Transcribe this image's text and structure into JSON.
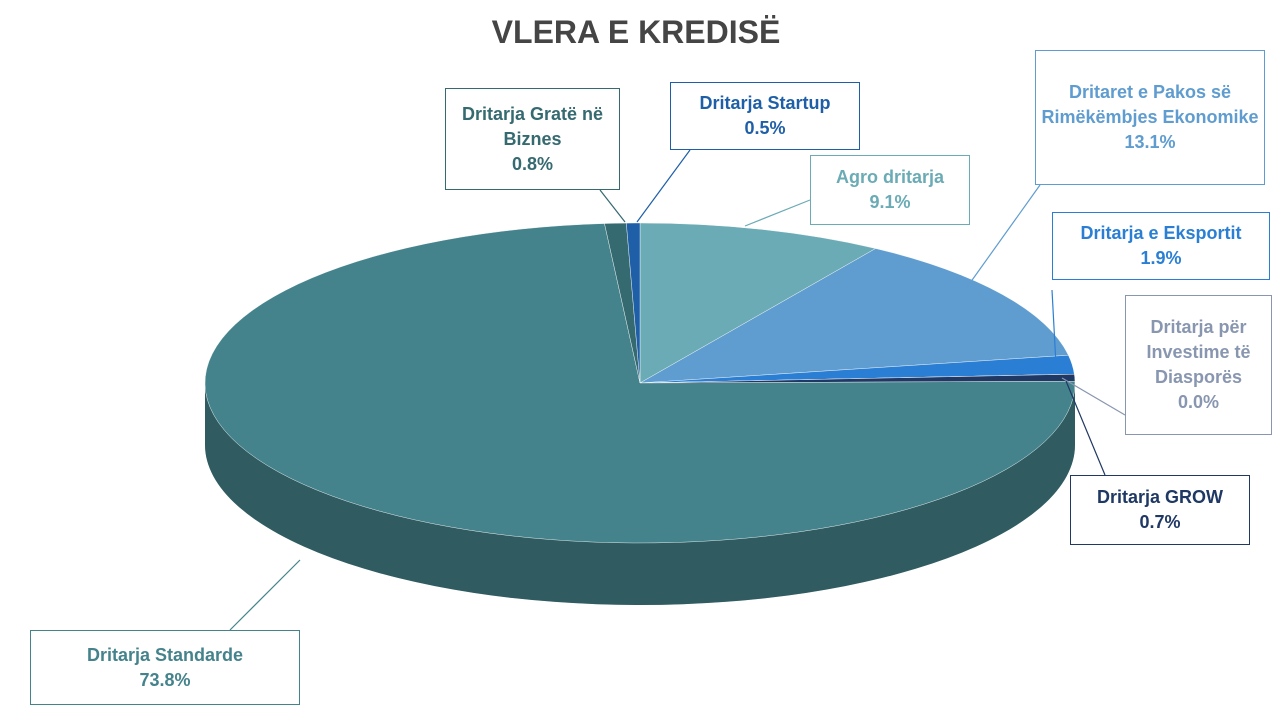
{
  "chart_data": {
    "type": "pie",
    "title": "VLERA E KREDISË",
    "categories": [
      "Agro dritarja",
      "Dritaret e Pakos së Rimëkëmbjes Ekonomike",
      "Dritarja e Eksportit",
      "Dritarja për Investime të Diasporës",
      "Dritarja GROW",
      "Dritarja Standarde",
      "Dritarja Gratë në Biznes",
      "Dritarja Startup"
    ],
    "values": [
      9.1,
      13.1,
      1.9,
      0.0,
      0.7,
      73.8,
      0.8,
      0.5
    ],
    "value_labels": [
      "9.1%",
      "13.1%",
      "1.9%",
      "0.0%",
      "0.7%",
      "73.8%",
      "0.8%",
      "0.5%"
    ],
    "colors": [
      "#6aabb5",
      "#5f9ccf",
      "#2a7fd4",
      "#8896b0",
      "#1f3864",
      "#44838c",
      "#356a70",
      "#1f5fa8"
    ]
  }
}
